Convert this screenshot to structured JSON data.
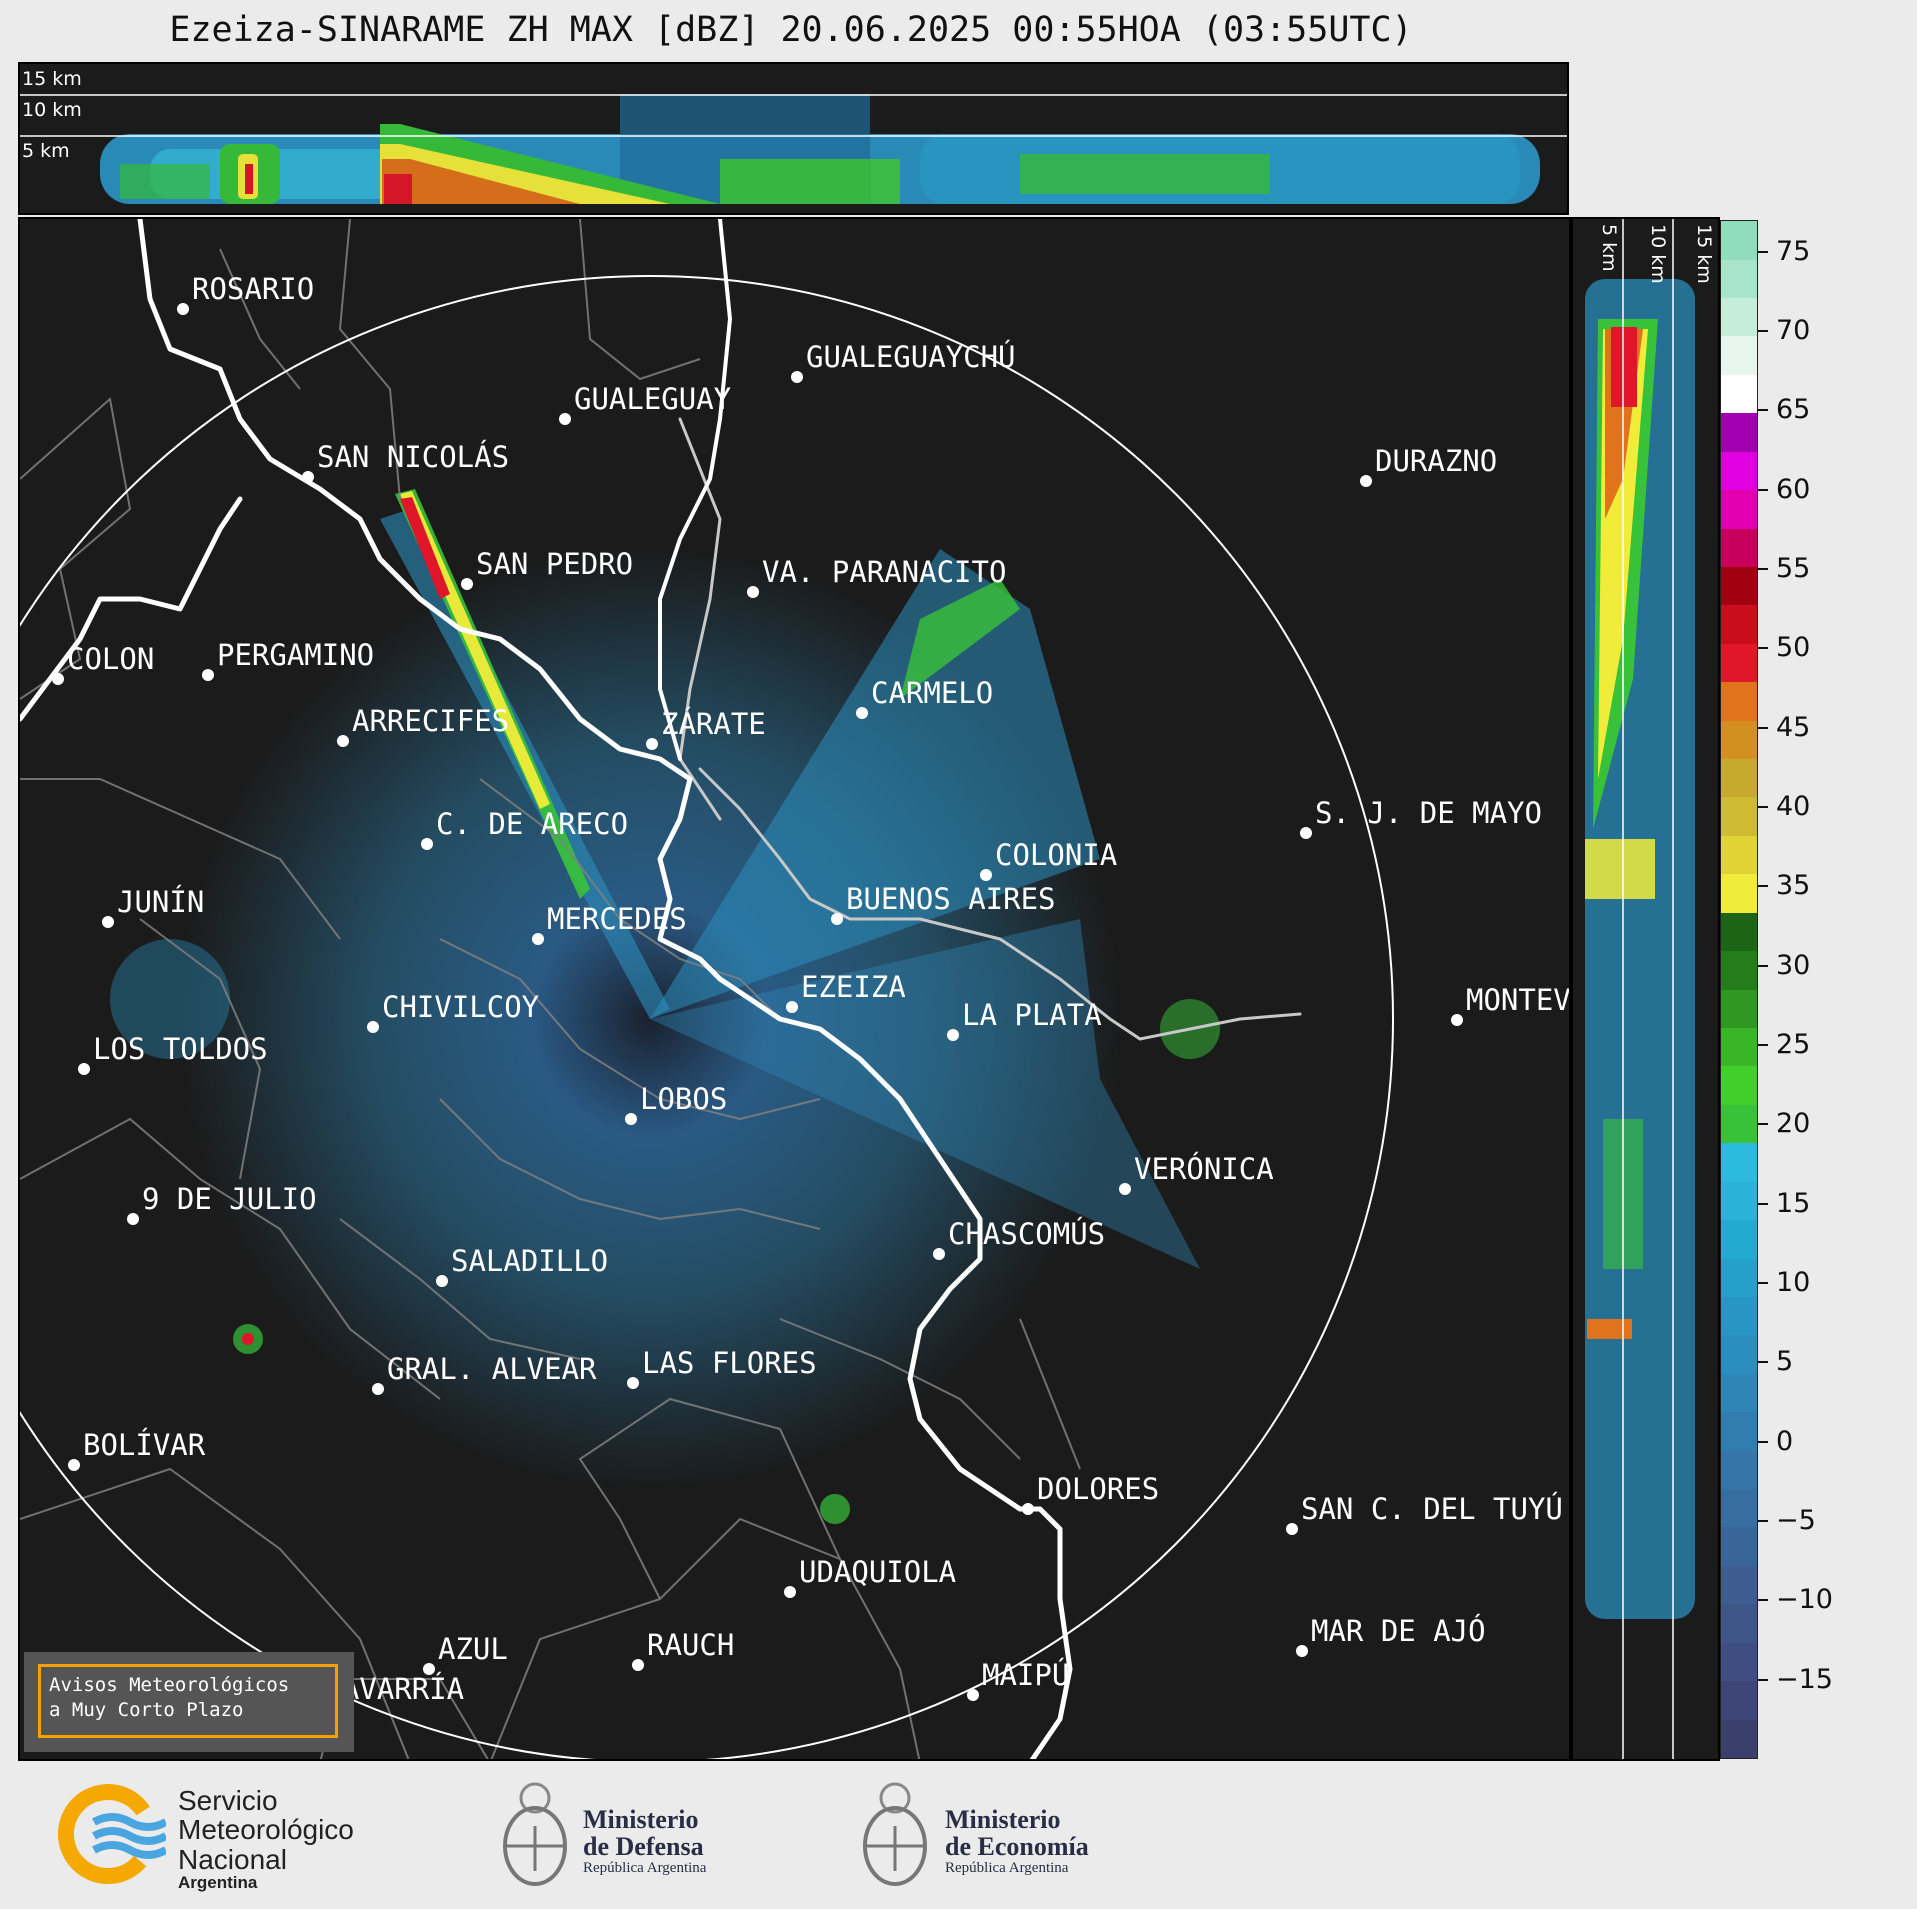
{
  "title": "Ezeiza-SINARAME ZH MAX [dBZ] 20.06.2025 00:55HOA (03:55UTC)",
  "top_panel": {
    "height_labels": [
      "15 km",
      "10 km",
      "5 km"
    ]
  },
  "side_panel": {
    "height_labels": [
      "5 km",
      "10 km",
      "15 km"
    ]
  },
  "cities": [
    {
      "id": "rosario",
      "name": "ROSARIO"
    },
    {
      "id": "gualeguaychu",
      "name": "GUALEGUAYCHÚ"
    },
    {
      "id": "gualeguay",
      "name": "GUALEGUAY"
    },
    {
      "id": "san-nicolas",
      "name": "SAN NICOLÁS"
    },
    {
      "id": "durazno",
      "name": "DURAZNO"
    },
    {
      "id": "san-pedro",
      "name": "SAN PEDRO"
    },
    {
      "id": "villa-paranacito",
      "name": "VA. PARANACITO"
    },
    {
      "id": "colon",
      "name": "COLON"
    },
    {
      "id": "pergamino",
      "name": "PERGAMINO"
    },
    {
      "id": "carmelo",
      "name": "CARMELO"
    },
    {
      "id": "arrecifes",
      "name": "ARRECIFES"
    },
    {
      "id": "zarate",
      "name": "ZÁRATE"
    },
    {
      "id": "sj-de-mayo",
      "name": "S. J. DE MAYO"
    },
    {
      "id": "c-de-areco",
      "name": "C. DE ARECO"
    },
    {
      "id": "colonia",
      "name": "COLONIA"
    },
    {
      "id": "junin",
      "name": "JUNÍN"
    },
    {
      "id": "buenos-aires",
      "name": "BUENOS AIRES"
    },
    {
      "id": "mercedes",
      "name": "MERCEDES"
    },
    {
      "id": "ezeiza",
      "name": "EZEIZA"
    },
    {
      "id": "montevideo",
      "name": "MONTEVIDEO"
    },
    {
      "id": "chivilcoy",
      "name": "CHIVILCOY"
    },
    {
      "id": "la-plata",
      "name": "LA PLATA"
    },
    {
      "id": "los-toldos",
      "name": "LOS TOLDOS"
    },
    {
      "id": "lobos",
      "name": "LOBOS"
    },
    {
      "id": "veronica",
      "name": "VERÓNICA"
    },
    {
      "id": "9-de-julio",
      "name": "9 DE JULIO"
    },
    {
      "id": "chascomus",
      "name": "CHASCOMÚS"
    },
    {
      "id": "saladillo",
      "name": "SALADILLO"
    },
    {
      "id": "gral-alvear",
      "name": "GRAL. ALVEAR"
    },
    {
      "id": "las-flores",
      "name": "LAS FLORES"
    },
    {
      "id": "bolivar",
      "name": "BOLÍVAR"
    },
    {
      "id": "dolores",
      "name": "DOLORES"
    },
    {
      "id": "san-c-del-tuyu",
      "name": "SAN C. DEL TUYÚ"
    },
    {
      "id": "udaquiola",
      "name": "UDAQUIOLA"
    },
    {
      "id": "mar-de-ajo",
      "name": "MAR DE AJÓ"
    },
    {
      "id": "azul",
      "name": "AZUL"
    },
    {
      "id": "rauch",
      "name": "RAUCH"
    },
    {
      "id": "olavarria",
      "name": "OLAVARRÍA"
    },
    {
      "id": "maipu",
      "name": "MAIPÚ"
    }
  ],
  "colorbar": {
    "ticks": [
      "75",
      "70",
      "65",
      "60",
      "55",
      "50",
      "45",
      "40",
      "35",
      "30",
      "25",
      "20",
      "15",
      "10",
      "5",
      "0",
      "−5",
      "−10",
      "−15"
    ],
    "min": -20,
    "max": 77,
    "colors_low_to_high": [
      "#3b3f6c",
      "#3d4676",
      "#3f4d80",
      "#3e5588",
      "#3d5d90",
      "#3a6598",
      "#386da0",
      "#3575a8",
      "#327daf",
      "#2f86b6",
      "#2b8ebd",
      "#2896c4",
      "#25a0cb",
      "#23aad2",
      "#2ab2d8",
      "#2cbbdf",
      "#38c23a",
      "#42cf2c",
      "#3ab528",
      "#2e9822",
      "#247c1a",
      "#1e6416",
      "#f1ec3a",
      "#dfd335",
      "#cfbb33",
      "#c7a92d",
      "#d38f20",
      "#e0731b",
      "#e0162a",
      "#c80d1d",
      "#a00010",
      "#c7005e",
      "#e200b0",
      "#e000e0",
      "#a000b0",
      "#ffffff",
      "#e6f6ee",
      "#c6ecda",
      "#a8e4cc",
      "#90dcbc"
    ]
  },
  "notice": {
    "line1": "Avisos Meteorológicos",
    "line2": "a Muy Corto Plazo"
  },
  "logos": {
    "smn": {
      "line1": "Servicio",
      "line2": "Meteorológico",
      "line3": "Nacional",
      "line4": "Argentina"
    },
    "defensa": {
      "line1": "Ministerio",
      "line2": "de Defensa",
      "line3": "República Argentina"
    },
    "economia": {
      "line1": "Ministerio",
      "line2": "de Economía",
      "line3": "República Argentina"
    }
  }
}
